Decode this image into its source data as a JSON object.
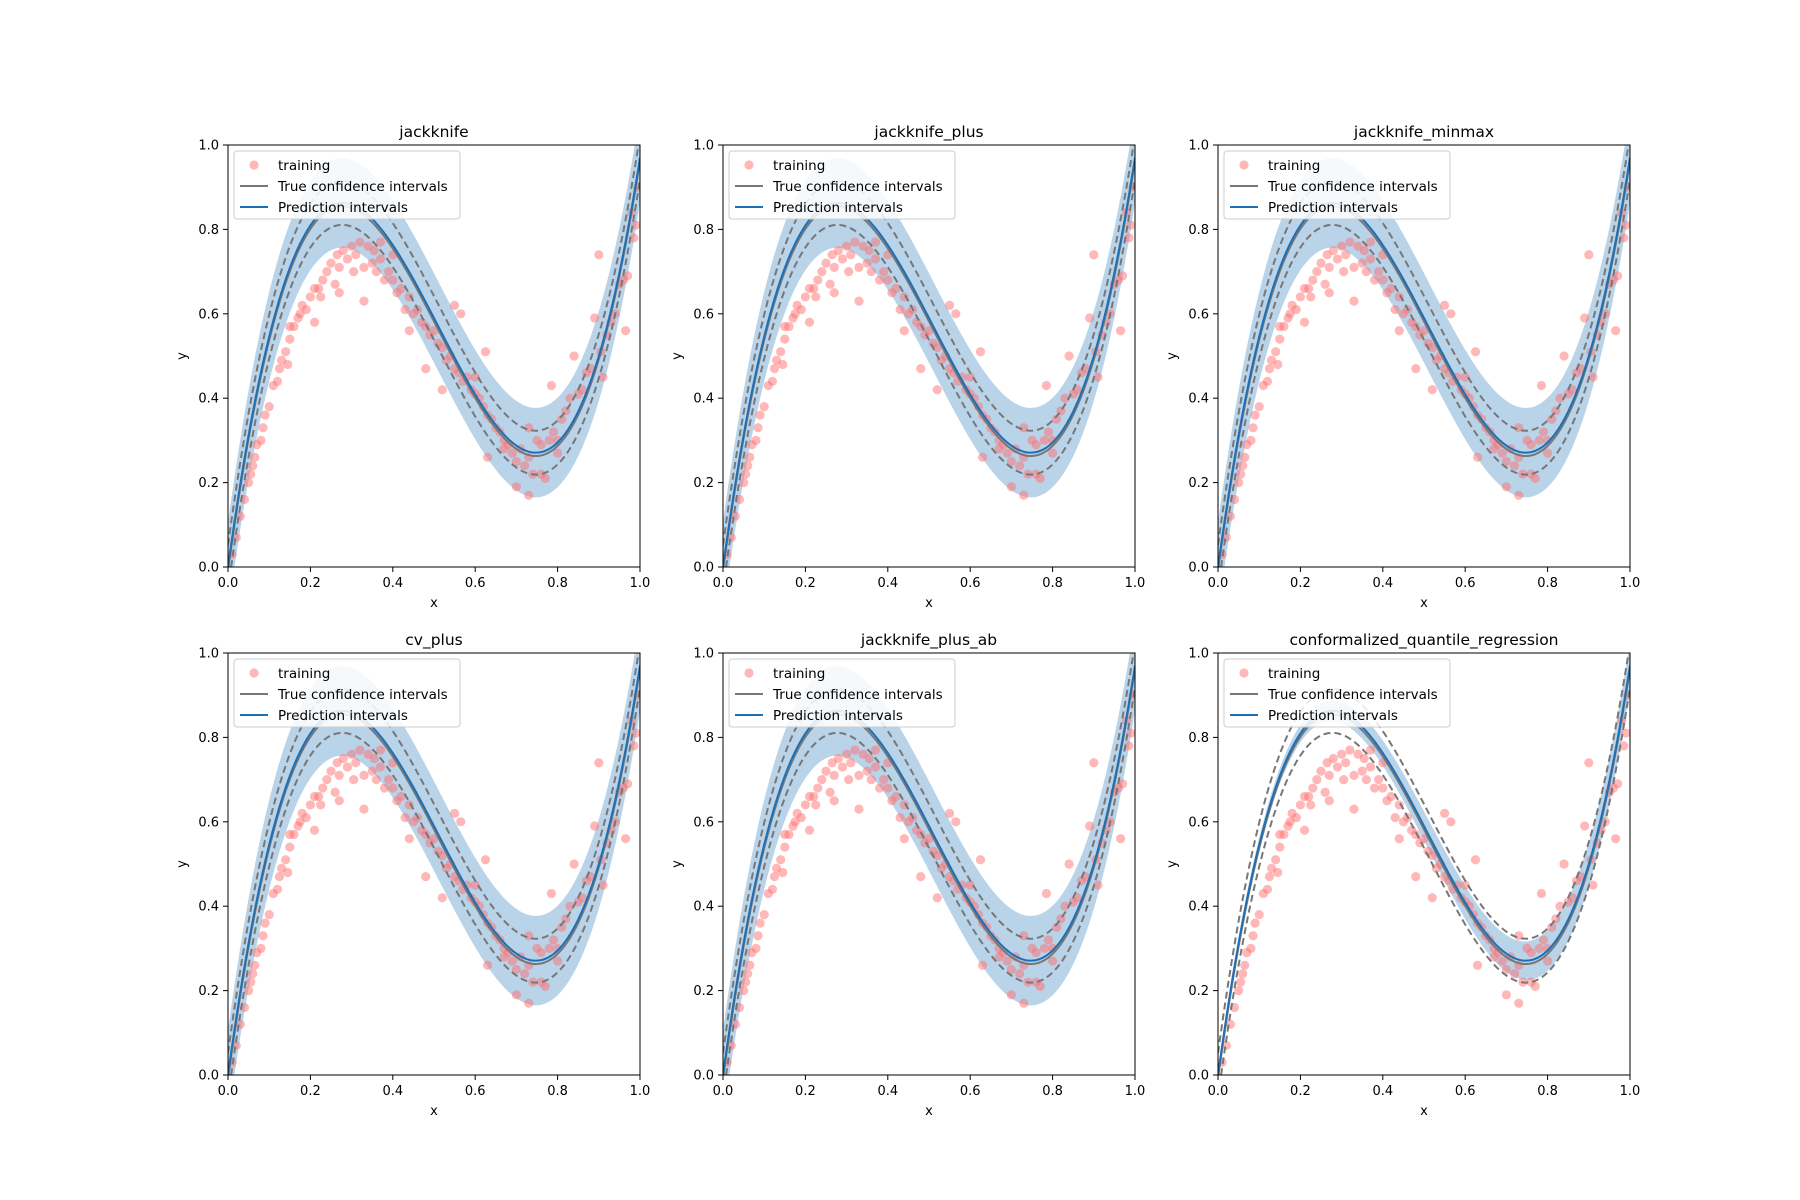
{
  "colors": {
    "training": "#ff6f6f",
    "true_ci": "#777777",
    "prediction": "#1f6fb4",
    "band": "#b9d3e9"
  },
  "chart_data": [
    {
      "type": "line",
      "title": "jackknife",
      "xlabel": "x",
      "ylabel": "y",
      "xlim": [
        0,
        1
      ],
      "ylim": [
        0,
        1
      ],
      "xticks": [
        "0.0",
        "0.2",
        "0.4",
        "0.6",
        "0.8",
        "1.0"
      ],
      "yticks": [
        "0.0",
        "0.2",
        "0.4",
        "0.6",
        "0.8",
        "1.0"
      ],
      "legend": {
        "placement": "upper-left",
        "entries": [
          "training",
          "True confidence intervals",
          "Prediction intervals"
        ]
      },
      "series": [
        {
          "name": "True confidence intervals",
          "values": "f(x) ± 0.052"
        },
        {
          "name": "Prediction intervals",
          "values": "f(x) ± 0.106, constant width"
        }
      ],
      "band_half_width": 0.106
    },
    {
      "type": "line",
      "title": "jackknife_plus",
      "xlabel": "x",
      "ylabel": "y",
      "xlim": [
        0,
        1
      ],
      "ylim": [
        0,
        1
      ],
      "xticks": [
        "0.0",
        "0.2",
        "0.4",
        "0.6",
        "0.8",
        "1.0"
      ],
      "yticks": [
        "0.0",
        "0.2",
        "0.4",
        "0.6",
        "0.8",
        "1.0"
      ],
      "legend": {
        "placement": "upper-left",
        "entries": [
          "training",
          "True confidence intervals",
          "Prediction intervals"
        ]
      },
      "band_half_width": 0.106
    },
    {
      "type": "line",
      "title": "jackknife_minmax",
      "xlabel": "x",
      "ylabel": "y",
      "xlim": [
        0,
        1
      ],
      "ylim": [
        0,
        1
      ],
      "xticks": [
        "0.0",
        "0.2",
        "0.4",
        "0.6",
        "0.8",
        "1.0"
      ],
      "yticks": [
        "0.0",
        "0.2",
        "0.4",
        "0.6",
        "0.8",
        "1.0"
      ],
      "legend": {
        "placement": "upper-left",
        "entries": [
          "training",
          "True confidence intervals",
          "Prediction intervals"
        ]
      },
      "band_half_width": 0.106
    },
    {
      "type": "line",
      "title": "cv_plus",
      "xlabel": "x",
      "ylabel": "y",
      "xlim": [
        0,
        1
      ],
      "ylim": [
        0,
        1
      ],
      "xticks": [
        "0.0",
        "0.2",
        "0.4",
        "0.6",
        "0.8",
        "1.0"
      ],
      "yticks": [
        "0.0",
        "0.2",
        "0.4",
        "0.6",
        "0.8",
        "1.0"
      ],
      "legend": {
        "placement": "upper-left",
        "entries": [
          "training",
          "True confidence intervals",
          "Prediction intervals"
        ]
      },
      "band_half_width": 0.106
    },
    {
      "type": "line",
      "title": "jackknife_plus_ab",
      "xlabel": "x",
      "ylabel": "y",
      "xlim": [
        0,
        1
      ],
      "ylim": [
        0,
        1
      ],
      "xticks": [
        "0.0",
        "0.2",
        "0.4",
        "0.6",
        "0.8",
        "1.0"
      ],
      "yticks": [
        "0.0",
        "0.2",
        "0.4",
        "0.6",
        "0.8",
        "1.0"
      ],
      "legend": {
        "placement": "upper-left",
        "entries": [
          "training",
          "True confidence intervals",
          "Prediction intervals"
        ]
      },
      "band_half_width": 0.106
    },
    {
      "type": "line",
      "title": "conformalized_quantile_regression",
      "xlabel": "x",
      "ylabel": "y",
      "xlim": [
        0,
        1
      ],
      "ylim": [
        0,
        1
      ],
      "xticks": [
        "0.0",
        "0.2",
        "0.4",
        "0.6",
        "0.8",
        "1.0"
      ],
      "yticks": [
        "0.0",
        "0.2",
        "0.4",
        "0.6",
        "0.8",
        "1.0"
      ],
      "legend": {
        "placement": "upper-left",
        "entries": [
          "training",
          "True confidence intervals",
          "Prediction intervals"
        ]
      },
      "band_half_width": "0.01 at x=0, growing to ~0.05 at x=1"
    }
  ],
  "shared": {
    "true_function": "y = 0.3 + 4.75(x-0.5) - 4.5(x-0.5)^2... approx: y(0)=0, y(0.32)=0.73, y(0.75)=0.28, y(1)=0.97",
    "true_ci_half_width": 0.052,
    "training_points": [
      [
        0.01,
        0.03
      ],
      [
        0.02,
        0.07
      ],
      [
        0.03,
        0.12
      ],
      [
        0.04,
        0.16
      ],
      [
        0.05,
        0.2
      ],
      [
        0.055,
        0.22
      ],
      [
        0.065,
        0.26
      ],
      [
        0.07,
        0.29
      ],
      [
        0.08,
        0.3
      ],
      [
        0.085,
        0.33
      ],
      [
        0.09,
        0.36
      ],
      [
        0.1,
        0.38
      ],
      [
        0.11,
        0.43
      ],
      [
        0.12,
        0.44
      ],
      [
        0.125,
        0.47
      ],
      [
        0.13,
        0.49
      ],
      [
        0.14,
        0.51
      ],
      [
        0.15,
        0.54
      ],
      [
        0.16,
        0.57
      ],
      [
        0.17,
        0.59
      ],
      [
        0.175,
        0.6
      ],
      [
        0.18,
        0.62
      ],
      [
        0.19,
        0.61
      ],
      [
        0.2,
        0.64
      ],
      [
        0.21,
        0.66
      ],
      [
        0.22,
        0.66
      ],
      [
        0.225,
        0.64
      ],
      [
        0.23,
        0.68
      ],
      [
        0.24,
        0.7
      ],
      [
        0.25,
        0.72
      ],
      [
        0.26,
        0.67
      ],
      [
        0.265,
        0.74
      ],
      [
        0.27,
        0.71
      ],
      [
        0.28,
        0.75
      ],
      [
        0.29,
        0.73
      ],
      [
        0.3,
        0.76
      ],
      [
        0.305,
        0.7
      ],
      [
        0.31,
        0.74
      ],
      [
        0.32,
        0.77
      ],
      [
        0.33,
        0.71
      ],
      [
        0.34,
        0.76
      ],
      [
        0.35,
        0.72
      ],
      [
        0.355,
        0.75
      ],
      [
        0.36,
        0.7
      ],
      [
        0.37,
        0.73
      ],
      [
        0.38,
        0.68
      ],
      [
        0.39,
        0.7
      ],
      [
        0.4,
        0.68
      ],
      [
        0.41,
        0.65
      ],
      [
        0.42,
        0.66
      ],
      [
        0.43,
        0.61
      ],
      [
        0.44,
        0.64
      ],
      [
        0.45,
        0.6
      ],
      [
        0.46,
        0.61
      ],
      [
        0.47,
        0.58
      ],
      [
        0.48,
        0.57
      ],
      [
        0.49,
        0.55
      ],
      [
        0.5,
        0.56
      ],
      [
        0.51,
        0.53
      ],
      [
        0.52,
        0.52
      ],
      [
        0.53,
        0.49
      ],
      [
        0.54,
        0.5
      ],
      [
        0.55,
        0.47
      ],
      [
        0.56,
        0.46
      ],
      [
        0.565,
        0.6
      ],
      [
        0.57,
        0.44
      ],
      [
        0.58,
        0.45
      ],
      [
        0.59,
        0.42
      ],
      [
        0.6,
        0.41
      ],
      [
        0.61,
        0.4
      ],
      [
        0.62,
        0.38
      ],
      [
        0.625,
        0.51
      ],
      [
        0.63,
        0.36
      ],
      [
        0.64,
        0.35
      ],
      [
        0.65,
        0.33
      ],
      [
        0.66,
        0.32
      ],
      [
        0.67,
        0.3
      ],
      [
        0.68,
        0.29
      ],
      [
        0.69,
        0.27
      ],
      [
        0.7,
        0.25
      ],
      [
        0.71,
        0.28
      ],
      [
        0.72,
        0.24
      ],
      [
        0.73,
        0.17
      ],
      [
        0.74,
        0.22
      ],
      [
        0.75,
        0.3
      ],
      [
        0.76,
        0.29
      ],
      [
        0.77,
        0.21
      ],
      [
        0.78,
        0.3
      ],
      [
        0.785,
        0.43
      ],
      [
        0.79,
        0.32
      ],
      [
        0.8,
        0.27
      ],
      [
        0.81,
        0.35
      ],
      [
        0.82,
        0.37
      ],
      [
        0.83,
        0.4
      ],
      [
        0.84,
        0.5
      ],
      [
        0.85,
        0.41
      ],
      [
        0.86,
        0.42
      ],
      [
        0.87,
        0.46
      ],
      [
        0.88,
        0.47
      ],
      [
        0.89,
        0.59
      ],
      [
        0.9,
        0.74
      ],
      [
        0.905,
        0.51
      ],
      [
        0.91,
        0.45
      ],
      [
        0.92,
        0.55
      ],
      [
        0.93,
        0.58
      ],
      [
        0.94,
        0.6
      ],
      [
        0.95,
        0.67
      ],
      [
        0.96,
        0.68
      ],
      [
        0.965,
        0.56
      ],
      [
        0.97,
        0.69
      ],
      [
        0.98,
        0.84
      ],
      [
        0.985,
        0.78
      ],
      [
        0.99,
        0.81
      ],
      [
        0.995,
        0.9
      ],
      [
        0.21,
        0.58
      ],
      [
        0.145,
        0.48
      ],
      [
        0.33,
        0.63
      ],
      [
        0.4,
        0.74
      ],
      [
        0.48,
        0.47
      ],
      [
        0.55,
        0.62
      ],
      [
        0.67,
        0.28
      ],
      [
        0.7,
        0.19
      ],
      [
        0.73,
        0.26
      ],
      [
        0.6,
        0.45
      ],
      [
        0.73,
        0.33
      ],
      [
        0.44,
        0.56
      ],
      [
        0.37,
        0.77
      ],
      [
        0.27,
        0.65
      ],
      [
        0.15,
        0.57
      ],
      [
        0.06,
        0.24
      ],
      [
        0.8,
        0.3
      ],
      [
        0.76,
        0.22
      ],
      [
        0.63,
        0.26
      ],
      [
        0.52,
        0.42
      ]
    ]
  }
}
